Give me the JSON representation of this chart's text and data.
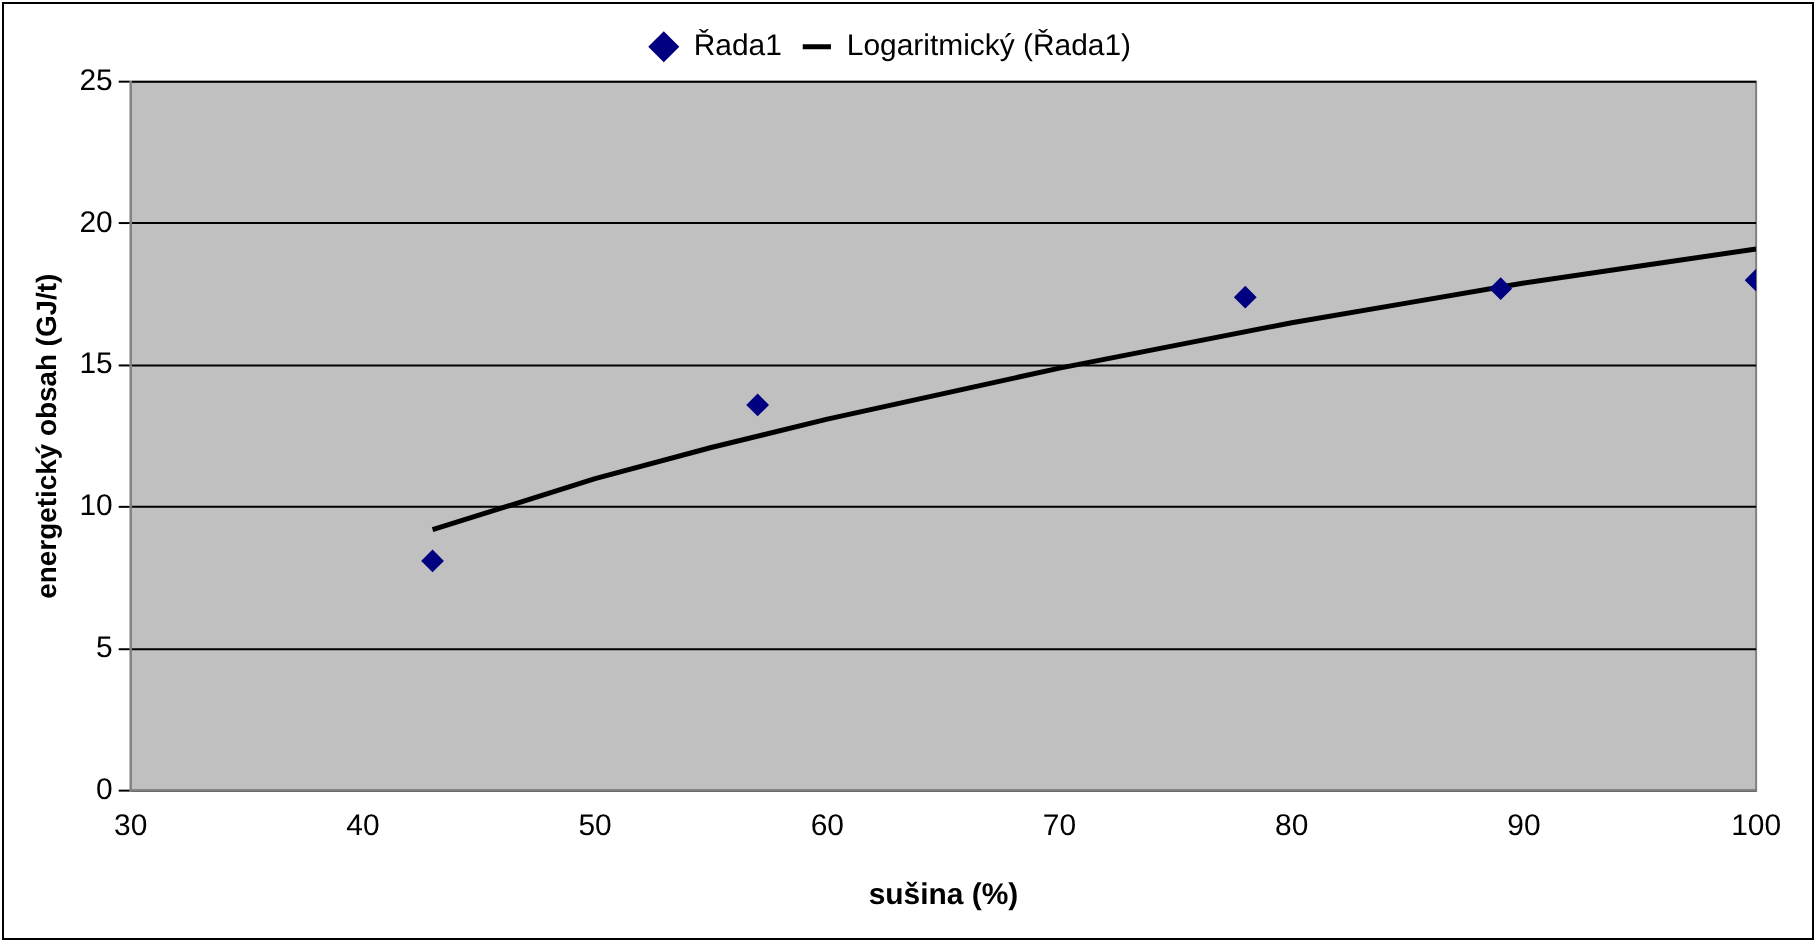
{
  "chart_data": {
    "type": "scatter",
    "xlabel": "sušina (%)",
    "ylabel": "energetický obsah (GJ/t)",
    "xlim": [
      30,
      100
    ],
    "xticks": [
      30,
      40,
      50,
      60,
      70,
      80,
      90,
      100
    ],
    "ylim": [
      0,
      25
    ],
    "yticks": [
      0,
      5,
      10,
      15,
      20,
      25
    ],
    "grid": "y",
    "legend": "top",
    "series": [
      {
        "name": "Řada1",
        "type": "scatter",
        "marker": "diamond",
        "color": "#000080",
        "x": [
          43,
          57,
          78,
          89,
          100
        ],
        "values": [
          8.1,
          13.6,
          17.4,
          17.7,
          18.0
        ]
      },
      {
        "name": "Logaritmický (Řada1)",
        "type": "line",
        "marker": "none",
        "line_style": "solid",
        "color": "#000000",
        "x": [
          43,
          50,
          55,
          60,
          65,
          70,
          75,
          80,
          85,
          90,
          95,
          100
        ],
        "values": [
          9.2,
          11.0,
          12.1,
          13.1,
          14.0,
          14.9,
          15.7,
          16.5,
          17.2,
          17.9,
          18.5,
          19.1
        ]
      }
    ]
  }
}
